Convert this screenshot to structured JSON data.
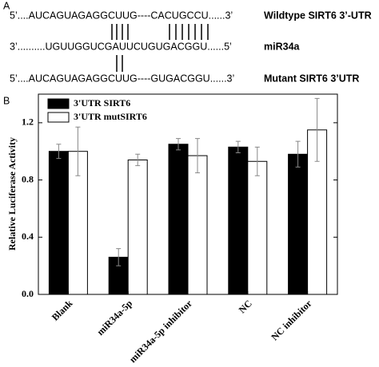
{
  "panel_a": {
    "label": "A",
    "rows": [
      {
        "sequence": "5’....AUCAGUAGAGGCUUG----CACUGCCU......3’",
        "name": "Wildtype SIRT6 3’-UTR"
      },
      {
        "sequence": "3’..........UGUUGGUCGAUUCUGUGACGGU......5’",
        "name": "miR34a"
      },
      {
        "sequence": "5’....AUCAGUAGAGGCUUG----GUGACGGU......3’",
        "name": "Mutant SIRT6 3’UTR"
      }
    ]
  },
  "chart_data": {
    "type": "bar",
    "panel_label": "B",
    "ylabel": "Relative Luciferase Activity",
    "categories": [
      "Blank",
      "miR34a-5p",
      "miR34a-5p inhibitor",
      "NC",
      "NC inhibitor"
    ],
    "series": [
      {
        "name": "3'UTR SIRT6",
        "color": "#000000",
        "values": [
          1.0,
          0.26,
          1.05,
          1.03,
          0.98
        ],
        "errors": [
          0.05,
          0.06,
          0.04,
          0.04,
          0.09
        ]
      },
      {
        "name": "3'UTR mutSIRT6",
        "color": "#ffffff",
        "values": [
          1.0,
          0.94,
          0.97,
          0.93,
          1.15
        ],
        "errors": [
          0.17,
          0.04,
          0.12,
          0.1,
          0.22
        ]
      }
    ],
    "ylim": [
      0,
      1.4
    ],
    "yticks": [
      {
        "value": 0,
        "label": "0.0"
      },
      0.4,
      0.8,
      1.2
    ],
    "legend": "upper-left"
  }
}
